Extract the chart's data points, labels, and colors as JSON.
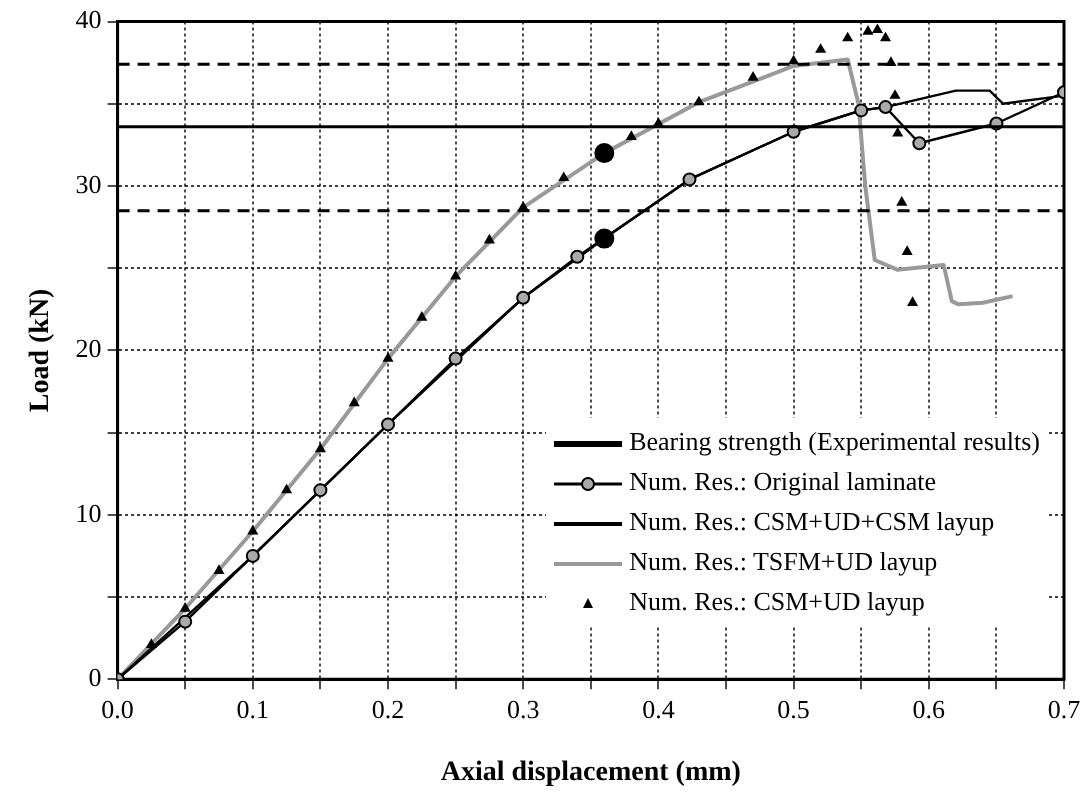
{
  "chart_data": {
    "type": "line",
    "xlabel": "Axial displacement (mm)",
    "ylabel": "Load (kN)",
    "xlim": [
      0,
      0.7
    ],
    "ylim": [
      0,
      40
    ],
    "xticks": [
      {
        "value": 0,
        "label": "0.0"
      },
      {
        "value": 0.05,
        "label": null
      },
      0.1,
      {
        "value": 0.15,
        "label": null
      },
      0.2,
      {
        "value": 0.25,
        "label": null
      },
      0.3,
      {
        "value": 0.35,
        "label": null
      },
      0.4,
      {
        "value": 0.45,
        "label": null
      },
      0.5,
      {
        "value": 0.55,
        "label": null
      },
      0.6,
      {
        "value": 0.65,
        "label": null
      },
      0.7
    ],
    "yticks": [
      0,
      {
        "value": 5,
        "label": null
      },
      10,
      {
        "value": 15,
        "label": null
      },
      20,
      {
        "value": 25,
        "label": null
      },
      30,
      {
        "value": 35,
        "label": null
      },
      40
    ],
    "grid": true,
    "legend": "bottom right",
    "ref_lines": [
      {
        "axis": "y",
        "value": 37.4,
        "line_style": "dashed",
        "color": "#000000"
      },
      {
        "axis": "y",
        "value": 28.5,
        "line_style": "dashed",
        "color": "#000000"
      }
    ],
    "series": [
      {
        "name": "Bearing strength (Experimental results)",
        "color": "#000000",
        "marker": "none",
        "line_style": "solid",
        "x": [
          0,
          0.7
        ],
        "values": [
          33.6,
          33.6
        ]
      },
      {
        "name": "Num. Res.: Original laminate",
        "color": "#000000",
        "marker": "circle",
        "x": [
          0,
          0.05,
          0.1,
          0.15,
          0.2,
          0.25,
          0.3,
          0.34,
          0.423,
          0.5,
          0.55,
          0.568,
          0.593,
          0.65,
          0.7
        ],
        "values": [
          0,
          3.5,
          7.5,
          11.5,
          15.5,
          19.5,
          23.2,
          25.7,
          30.4,
          33.3,
          34.6,
          34.8,
          32.6,
          33.8,
          35.7
        ]
      },
      {
        "name": "Num. Res.: CSM+UD+CSM layup",
        "color": "#000000",
        "marker": "none",
        "x": [
          0,
          0.1,
          0.2,
          0.3,
          0.36,
          0.423,
          0.5,
          0.55,
          0.568,
          0.62,
          0.645,
          0.655,
          0.7
        ],
        "values": [
          0,
          7.5,
          15.5,
          23.2,
          26.8,
          30.4,
          33.3,
          34.6,
          34.8,
          35.8,
          35.8,
          35,
          35.5
        ]
      },
      {
        "name": "Num. Res.: TSFM+UD layup",
        "color": "#999999",
        "marker": "none",
        "x": [
          0,
          0.05,
          0.1,
          0.15,
          0.2,
          0.25,
          0.3,
          0.36,
          0.43,
          0.5,
          0.54,
          0.548,
          0.553,
          0.56,
          0.577,
          0.611,
          0.617,
          0.622,
          0.64,
          0.662
        ],
        "values": [
          0,
          4.3,
          9,
          14,
          19.5,
          24.5,
          28.7,
          32,
          35.1,
          37.3,
          37.7,
          35,
          30,
          25.5,
          24.9,
          25.2,
          23,
          22.8,
          22.9,
          23.3
        ]
      },
      {
        "name": "Num. Res.: CSM+UD layup",
        "type": "scatter",
        "color": "#000000",
        "marker": "triangle",
        "x": [
          0.025,
          0.05,
          0.075,
          0.1,
          0.125,
          0.15,
          0.175,
          0.2,
          0.225,
          0.25,
          0.275,
          0.3,
          0.33,
          0.38,
          0.4,
          0.43,
          0.47,
          0.5,
          0.52,
          0.54,
          0.555,
          0.562,
          0.568,
          0.572,
          0.575,
          0.577,
          0.58,
          0.584,
          0.588
        ],
        "values": [
          2.1,
          4.3,
          6.6,
          9,
          11.5,
          14,
          16.8,
          19.5,
          22,
          24.5,
          26.7,
          28.7,
          30.5,
          33,
          33.8,
          35.1,
          36.6,
          37.6,
          38.3,
          39,
          39.4,
          39.5,
          39,
          37.5,
          35.5,
          33.2,
          29,
          26,
          22.9
        ]
      },
      {
        "type": "scatter",
        "color": "#000000",
        "marker": "circle",
        "x": [
          0.36,
          0.36
        ],
        "values": [
          32,
          26.8
        ]
      }
    ]
  }
}
